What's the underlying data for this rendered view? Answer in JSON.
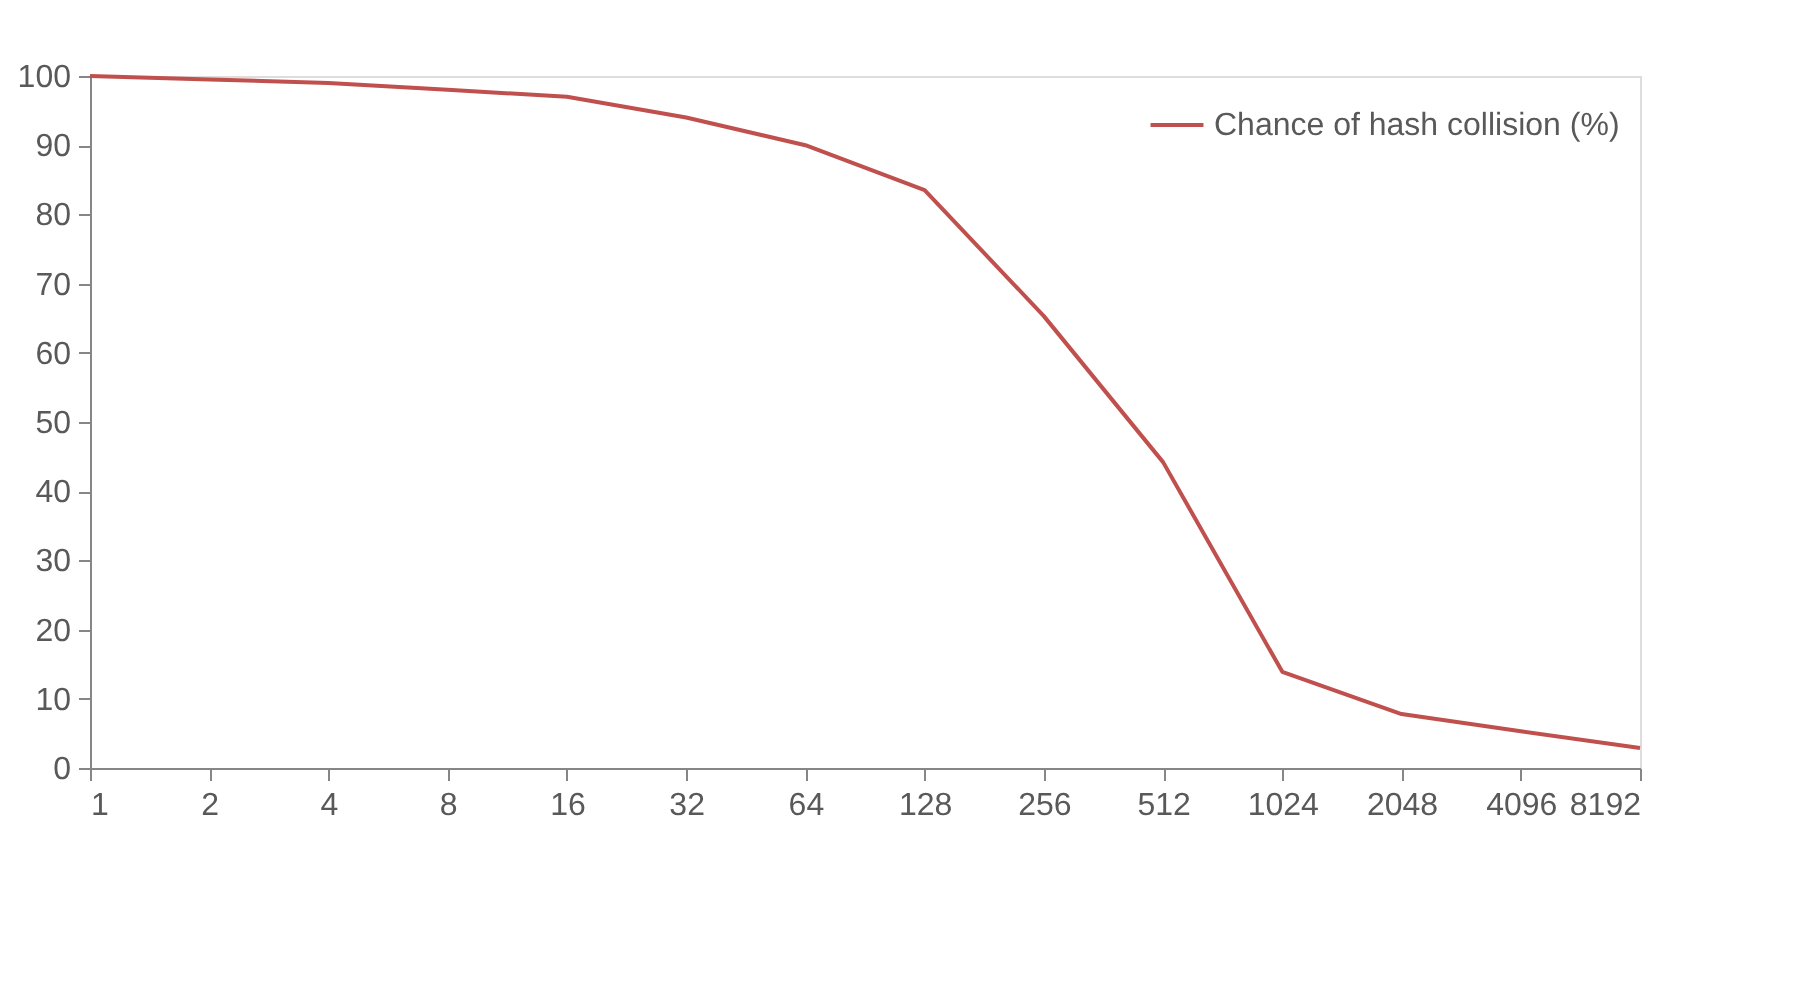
{
  "chart_data": {
    "type": "line",
    "categories": [
      "1",
      "2",
      "4",
      "8",
      "16",
      "32",
      "64",
      "128",
      "256",
      "512",
      "1024",
      "2048",
      "4096",
      "8192"
    ],
    "series": [
      {
        "name": "Chance of hash collision (%)",
        "color": "#c0504d",
        "values": [
          100,
          99.5,
          99,
          98,
          97,
          94,
          90,
          83.5,
          65.3,
          44.2,
          13.9,
          7.8,
          5.3,
          2.9
        ]
      }
    ],
    "ylim": [
      0,
      100
    ],
    "yticks": [
      0,
      10,
      20,
      30,
      40,
      50,
      60,
      70,
      80,
      90,
      100
    ],
    "grid": false,
    "legend": "top right",
    "marker": "none",
    "line_style": "solid"
  }
}
